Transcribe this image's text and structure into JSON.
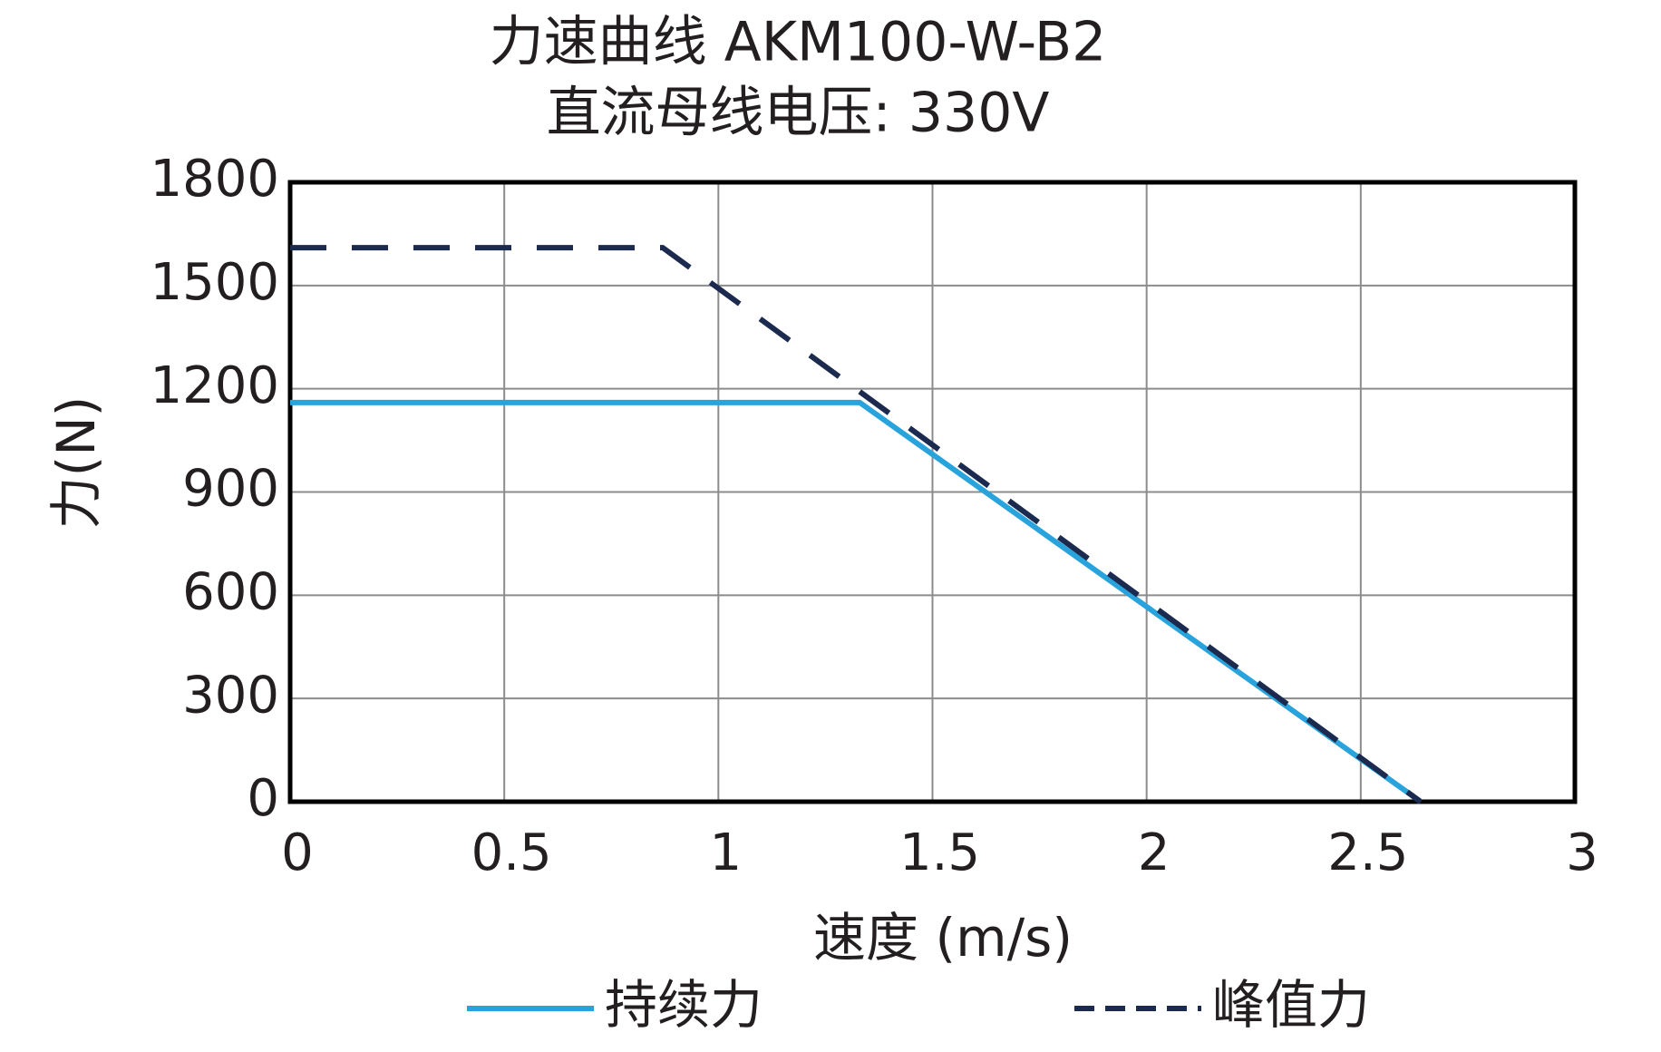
{
  "chart_data": {
    "type": "line",
    "title": "力速曲线 AKM100-W-B2",
    "subtitle": "直流母线电压: 330V",
    "x_label": "速度 (m/s)",
    "y_label": "力(N)",
    "xlim": [
      0,
      3
    ],
    "xticks": [
      0,
      0.5,
      1,
      1.5,
      2,
      2.5,
      3
    ],
    "ylim": [
      0,
      1800
    ],
    "yticks": [
      0,
      300,
      600,
      900,
      1200,
      1500,
      1800
    ],
    "grid": true,
    "legend": "bottom",
    "series": [
      {
        "name": "持续力",
        "color": "#29a3dc",
        "dash": false,
        "x": [
          0,
          1.33,
          2.64
        ],
        "values": [
          1160,
          1160,
          0
        ]
      },
      {
        "name": "峰值力",
        "color": "#1b2a4e",
        "dash": true,
        "x": [
          0,
          0.87,
          2.64
        ],
        "values": [
          1610,
          1610,
          0
        ]
      }
    ]
  }
}
